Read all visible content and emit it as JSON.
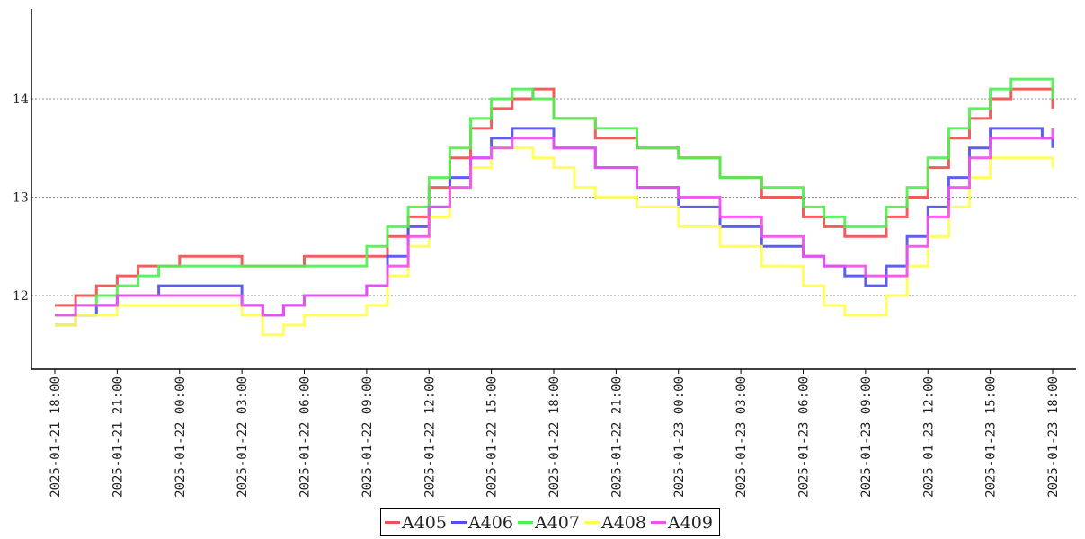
{
  "chart_data": {
    "type": "line",
    "title": "",
    "xlabel": "",
    "ylabel": "",
    "x_range": [
      "2025-01-21 18:00",
      "2025-01-23 18:00"
    ],
    "ylim": [
      11.2,
      14.9
    ],
    "yticks": [
      12,
      13,
      14
    ],
    "ytick_labels": [
      "12",
      "13",
      "14"
    ],
    "xticks": [
      "2025-01-21 18:00",
      "2025-01-21 21:00",
      "2025-01-22 00:00",
      "2025-01-22 03:00",
      "2025-01-22 06:00",
      "2025-01-22 09:00",
      "2025-01-22 12:00",
      "2025-01-22 15:00",
      "2025-01-22 18:00",
      "2025-01-22 21:00",
      "2025-01-23 00:00",
      "2025-01-23 03:00",
      "2025-01-23 06:00",
      "2025-01-23 09:00",
      "2025-01-23 12:00",
      "2025-01-23 15:00",
      "2025-01-23 18:00"
    ],
    "xtick_labels": [
      "2025-01-21 18:00",
      "2025-01-21 21:00",
      "2025-01-22 00:00",
      "2025-01-22 03:00",
      "2025-01-22 06:00",
      "2025-01-22 09:00",
      "2025-01-22 12:00",
      "2025-01-22 15:00",
      "2025-01-22 18:00",
      "2025-01-22 21:00",
      "2025-01-23 00:00",
      "2025-01-23 03:00",
      "2025-01-23 06:00",
      "2025-01-23 09:00",
      "2025-01-23 12:00",
      "2025-01-23 15:00",
      "2025-01-23 18:00"
    ],
    "grid": {
      "y": true,
      "x": false,
      "style": "dotted"
    },
    "legend": {
      "position": "bottom-center"
    },
    "series": [
      {
        "name": "A405",
        "color": "#f05050",
        "x": [
          "2025-01-21 18:00",
          "2025-01-21 19:00",
          "2025-01-21 20:00",
          "2025-01-21 21:00",
          "2025-01-21 22:00",
          "2025-01-21 23:00",
          "2025-01-22 00:00",
          "2025-01-22 03:00",
          "2025-01-22 04:00",
          "2025-01-22 06:00",
          "2025-01-22 09:00",
          "2025-01-22 10:00",
          "2025-01-22 11:00",
          "2025-01-22 12:00",
          "2025-01-22 13:00",
          "2025-01-22 14:00",
          "2025-01-22 15:00",
          "2025-01-22 16:00",
          "2025-01-22 17:00",
          "2025-01-22 18:00",
          "2025-01-22 20:00",
          "2025-01-22 22:00",
          "2025-01-23 00:00",
          "2025-01-23 02:00",
          "2025-01-23 04:00",
          "2025-01-23 06:00",
          "2025-01-23 07:00",
          "2025-01-23 08:00",
          "2025-01-23 09:00",
          "2025-01-23 10:00",
          "2025-01-23 11:00",
          "2025-01-23 12:00",
          "2025-01-23 13:00",
          "2025-01-23 14:00",
          "2025-01-23 15:00",
          "2025-01-23 16:00",
          "2025-01-23 17:30",
          "2025-01-23 18:00"
        ],
        "values": [
          11.9,
          12.0,
          12.1,
          12.2,
          12.3,
          12.3,
          12.4,
          12.3,
          12.3,
          12.4,
          12.4,
          12.6,
          12.8,
          13.1,
          13.4,
          13.7,
          13.9,
          14.0,
          14.1,
          13.8,
          13.6,
          13.5,
          13.4,
          13.2,
          13.0,
          12.8,
          12.7,
          12.6,
          12.6,
          12.8,
          13.0,
          13.3,
          13.6,
          13.8,
          14.0,
          14.1,
          14.1,
          13.9
        ]
      },
      {
        "name": "A406",
        "color": "#5050f0",
        "x": [
          "2025-01-21 18:00",
          "2025-01-21 19:00",
          "2025-01-21 20:00",
          "2025-01-21 21:00",
          "2025-01-21 22:00",
          "2025-01-21 23:00",
          "2025-01-22 00:00",
          "2025-01-22 03:00",
          "2025-01-22 04:00",
          "2025-01-22 05:00",
          "2025-01-22 06:00",
          "2025-01-22 09:00",
          "2025-01-22 10:00",
          "2025-01-22 11:00",
          "2025-01-22 12:00",
          "2025-01-22 13:00",
          "2025-01-22 14:00",
          "2025-01-22 15:00",
          "2025-01-22 16:00",
          "2025-01-22 17:00",
          "2025-01-22 18:00",
          "2025-01-22 20:00",
          "2025-01-22 22:00",
          "2025-01-23 00:00",
          "2025-01-23 02:00",
          "2025-01-23 04:00",
          "2025-01-23 06:00",
          "2025-01-23 07:00",
          "2025-01-23 08:00",
          "2025-01-23 09:00",
          "2025-01-23 10:00",
          "2025-01-23 11:00",
          "2025-01-23 12:00",
          "2025-01-23 13:00",
          "2025-01-23 14:00",
          "2025-01-23 15:00",
          "2025-01-23 16:00",
          "2025-01-23 17:30",
          "2025-01-23 18:00"
        ],
        "values": [
          11.7,
          11.8,
          11.9,
          12.0,
          12.0,
          12.1,
          12.1,
          11.9,
          11.8,
          11.9,
          12.0,
          12.1,
          12.4,
          12.7,
          12.9,
          13.2,
          13.4,
          13.6,
          13.7,
          13.7,
          13.5,
          13.3,
          13.1,
          12.9,
          12.7,
          12.5,
          12.4,
          12.3,
          12.2,
          12.1,
          12.3,
          12.6,
          12.9,
          13.2,
          13.5,
          13.7,
          13.7,
          13.6,
          13.5
        ]
      },
      {
        "name": "A407",
        "color": "#50f050",
        "x": [
          "2025-01-21 18:00",
          "2025-01-21 19:00",
          "2025-01-21 20:00",
          "2025-01-21 21:00",
          "2025-01-21 22:00",
          "2025-01-21 23:00",
          "2025-01-22 00:00",
          "2025-01-22 03:00",
          "2025-01-22 06:00",
          "2025-01-22 09:00",
          "2025-01-22 10:00",
          "2025-01-22 11:00",
          "2025-01-22 12:00",
          "2025-01-22 13:00",
          "2025-01-22 14:00",
          "2025-01-22 15:00",
          "2025-01-22 16:00",
          "2025-01-22 17:00",
          "2025-01-22 18:00",
          "2025-01-22 20:00",
          "2025-01-22 22:00",
          "2025-01-23 00:00",
          "2025-01-23 02:00",
          "2025-01-23 04:00",
          "2025-01-23 06:00",
          "2025-01-23 07:00",
          "2025-01-23 08:00",
          "2025-01-23 09:00",
          "2025-01-23 10:00",
          "2025-01-23 11:00",
          "2025-01-23 12:00",
          "2025-01-23 13:00",
          "2025-01-23 14:00",
          "2025-01-23 15:00",
          "2025-01-23 16:00",
          "2025-01-23 17:30",
          "2025-01-23 18:00"
        ],
        "values": [
          11.8,
          11.9,
          12.0,
          12.1,
          12.2,
          12.3,
          12.3,
          12.3,
          12.3,
          12.5,
          12.7,
          12.9,
          13.2,
          13.5,
          13.8,
          14.0,
          14.1,
          14.0,
          13.8,
          13.7,
          13.5,
          13.4,
          13.2,
          13.1,
          12.9,
          12.8,
          12.7,
          12.7,
          12.9,
          13.1,
          13.4,
          13.7,
          13.9,
          14.1,
          14.2,
          14.2,
          14.0
        ]
      },
      {
        "name": "A408",
        "color": "#ffff50",
        "x": [
          "2025-01-21 18:00",
          "2025-01-21 19:00",
          "2025-01-21 20:00",
          "2025-01-21 21:00",
          "2025-01-22 00:00",
          "2025-01-22 03:00",
          "2025-01-22 04:00",
          "2025-01-22 05:00",
          "2025-01-22 06:00",
          "2025-01-22 08:00",
          "2025-01-22 09:00",
          "2025-01-22 10:00",
          "2025-01-22 11:00",
          "2025-01-22 12:00",
          "2025-01-22 13:00",
          "2025-01-22 14:00",
          "2025-01-22 15:00",
          "2025-01-22 16:00",
          "2025-01-22 17:00",
          "2025-01-22 18:00",
          "2025-01-22 19:00",
          "2025-01-22 20:00",
          "2025-01-22 22:00",
          "2025-01-23 00:00",
          "2025-01-23 02:00",
          "2025-01-23 04:00",
          "2025-01-23 06:00",
          "2025-01-23 07:00",
          "2025-01-23 08:00",
          "2025-01-23 09:00",
          "2025-01-23 10:00",
          "2025-01-23 11:00",
          "2025-01-23 12:00",
          "2025-01-23 13:00",
          "2025-01-23 14:00",
          "2025-01-23 15:00",
          "2025-01-23 16:00",
          "2025-01-23 17:30",
          "2025-01-23 18:00"
        ],
        "values": [
          11.7,
          11.8,
          11.8,
          11.9,
          11.9,
          11.8,
          11.6,
          11.7,
          11.8,
          11.8,
          11.9,
          12.2,
          12.5,
          12.8,
          13.1,
          13.3,
          13.5,
          13.5,
          13.4,
          13.3,
          13.1,
          13.0,
          12.9,
          12.7,
          12.5,
          12.3,
          12.1,
          11.9,
          11.8,
          11.8,
          12.0,
          12.3,
          12.6,
          12.9,
          13.2,
          13.4,
          13.4,
          13.4,
          13.3
        ]
      },
      {
        "name": "A409",
        "color": "#f050f0",
        "x": [
          "2025-01-21 18:00",
          "2025-01-21 19:00",
          "2025-01-21 20:00",
          "2025-01-21 21:00",
          "2025-01-21 22:00",
          "2025-01-21 23:00",
          "2025-01-22 00:00",
          "2025-01-22 03:00",
          "2025-01-22 04:00",
          "2025-01-22 05:00",
          "2025-01-22 06:00",
          "2025-01-22 09:00",
          "2025-01-22 10:00",
          "2025-01-22 11:00",
          "2025-01-22 12:00",
          "2025-01-22 13:00",
          "2025-01-22 14:00",
          "2025-01-22 15:00",
          "2025-01-22 16:00",
          "2025-01-22 17:00",
          "2025-01-22 18:00",
          "2025-01-22 20:00",
          "2025-01-22 22:00",
          "2025-01-23 00:00",
          "2025-01-23 02:00",
          "2025-01-23 04:00",
          "2025-01-23 06:00",
          "2025-01-23 07:00",
          "2025-01-23 08:00",
          "2025-01-23 09:00",
          "2025-01-23 10:00",
          "2025-01-23 11:00",
          "2025-01-23 12:00",
          "2025-01-23 13:00",
          "2025-01-23 14:00",
          "2025-01-23 15:00",
          "2025-01-23 16:00",
          "2025-01-23 17:30",
          "2025-01-23 18:00"
        ],
        "values": [
          11.8,
          11.9,
          11.9,
          12.0,
          12.0,
          12.0,
          12.0,
          11.9,
          11.8,
          11.9,
          12.0,
          12.1,
          12.3,
          12.6,
          12.9,
          13.1,
          13.4,
          13.5,
          13.6,
          13.6,
          13.5,
          13.3,
          13.1,
          13.0,
          12.8,
          12.6,
          12.4,
          12.3,
          12.3,
          12.2,
          12.2,
          12.5,
          12.8,
          13.1,
          13.4,
          13.6,
          13.6,
          13.6,
          13.7
        ]
      }
    ]
  }
}
